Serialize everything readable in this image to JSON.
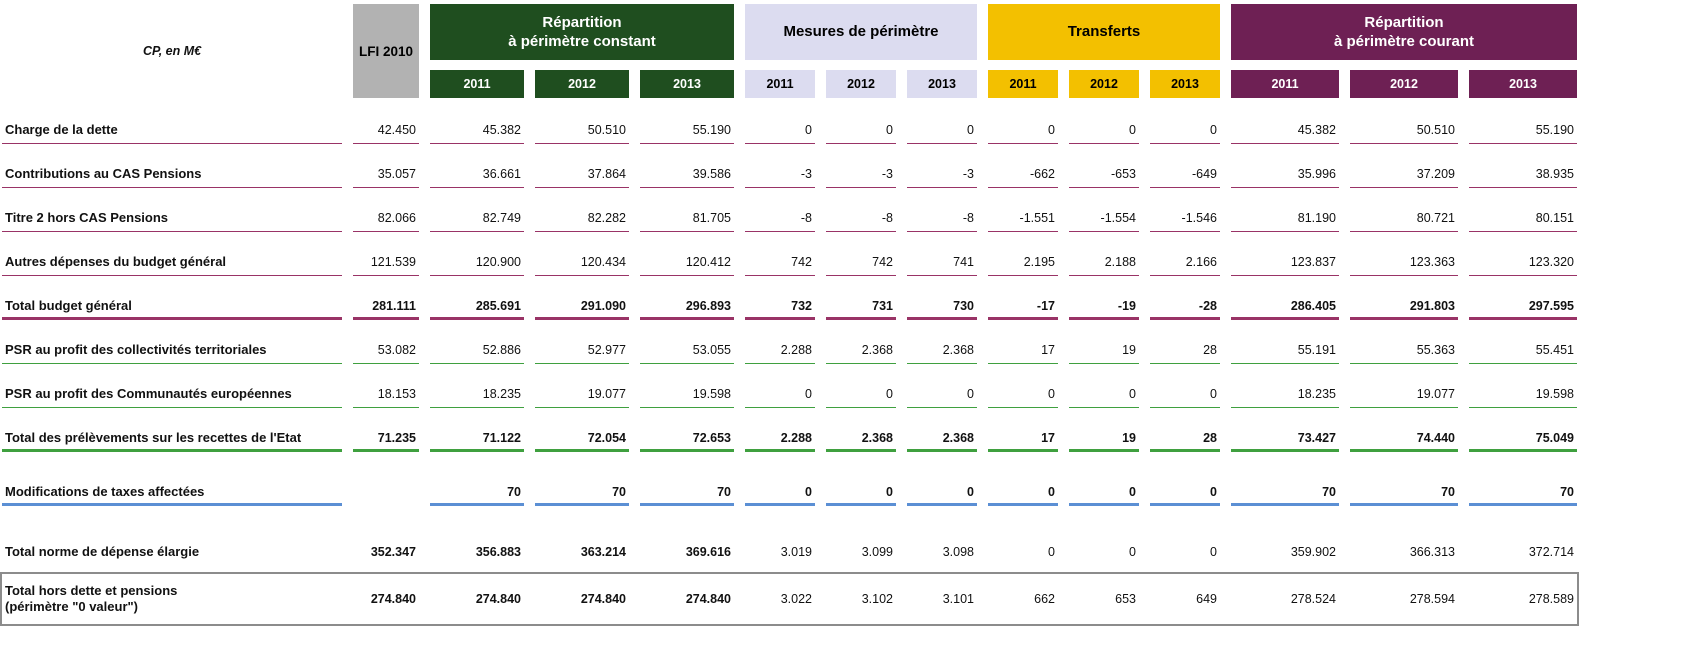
{
  "colors": {
    "lfi_bg": "#b2b2b2",
    "constant_bg": "#1f4e1f",
    "mesures_bg": "#dcdcf0",
    "transferts_bg": "#f3c000",
    "courant_bg": "#6e2054",
    "white": "#ffffff",
    "black": "#000000",
    "purple": "#993366",
    "green": "#3fa03f",
    "blue": "#5b8fd4",
    "box_border": "#8c8c8c"
  },
  "chart_data": {
    "type": "table",
    "unit_label": "CP, en M€",
    "lfi_header": "LFI 2010",
    "column_groups": [
      {
        "label": "Répartition\nà périmètre constant",
        "years": [
          "2011",
          "2012",
          "2013"
        ]
      },
      {
        "label": "Mesures de périmètre",
        "years": [
          "2011",
          "2012",
          "2013"
        ]
      },
      {
        "label": "Transferts",
        "years": [
          "2011",
          "2012",
          "2013"
        ]
      },
      {
        "label": "Répartition\nà périmètre courant",
        "years": [
          "2011",
          "2012",
          "2013"
        ]
      }
    ],
    "rows": [
      {
        "label": "Charge de la dette",
        "values": [
          "42.450",
          "45.382",
          "50.510",
          "55.190",
          "0",
          "0",
          "0",
          "0",
          "0",
          "0",
          "45.382",
          "50.510",
          "55.190"
        ],
        "bold": false,
        "rule": "purple",
        "rule_weight": "thin"
      },
      {
        "label": "Contributions au CAS Pensions",
        "values": [
          "35.057",
          "36.661",
          "37.864",
          "39.586",
          "-3",
          "-3",
          "-3",
          "-662",
          "-653",
          "-649",
          "35.996",
          "37.209",
          "38.935"
        ],
        "bold": false,
        "rule": "purple",
        "rule_weight": "thin"
      },
      {
        "label": "Titre 2 hors CAS Pensions",
        "values": [
          "82.066",
          "82.749",
          "82.282",
          "81.705",
          "-8",
          "-8",
          "-8",
          "-1.551",
          "-1.554",
          "-1.546",
          "81.190",
          "80.721",
          "80.151"
        ],
        "bold": false,
        "rule": "purple",
        "rule_weight": "thin"
      },
      {
        "label": "Autres dépenses du budget général",
        "values": [
          "121.539",
          "120.900",
          "120.434",
          "120.412",
          "742",
          "742",
          "741",
          "2.195",
          "2.188",
          "2.166",
          "123.837",
          "123.363",
          "123.320"
        ],
        "bold": false,
        "rule": "purple",
        "rule_weight": "thin"
      },
      {
        "label": "Total budget général",
        "values": [
          "281.111",
          "285.691",
          "291.090",
          "296.893",
          "732",
          "731",
          "730",
          "-17",
          "-19",
          "-28",
          "286.405",
          "291.803",
          "297.595"
        ],
        "bold": true,
        "rule": "purple",
        "rule_weight": "thick"
      },
      {
        "label": "PSR au profit des collectivités territoriales",
        "values": [
          "53.082",
          "52.886",
          "52.977",
          "53.055",
          "2.288",
          "2.368",
          "2.368",
          "17",
          "19",
          "28",
          "55.191",
          "55.363",
          "55.451"
        ],
        "bold": false,
        "rule": "green",
        "rule_weight": "thin"
      },
      {
        "label": "PSR au profit des Communautés européennes",
        "values": [
          "18.153",
          "18.235",
          "19.077",
          "19.598",
          "0",
          "0",
          "0",
          "0",
          "0",
          "0",
          "18.235",
          "19.077",
          "19.598"
        ],
        "bold": false,
        "rule": "green",
        "rule_weight": "thin"
      },
      {
        "label": "Total des prélèvements sur les recettes de l'Etat",
        "values": [
          "71.235",
          "71.122",
          "72.054",
          "72.653",
          "2.288",
          "2.368",
          "2.368",
          "17",
          "19",
          "28",
          "73.427",
          "74.440",
          "75.049"
        ],
        "bold": true,
        "rule": "green",
        "rule_weight": "thick"
      },
      {
        "label": "Modifications de taxes affectées",
        "values": [
          "",
          "70",
          "70",
          "70",
          "0",
          "0",
          "0",
          "0",
          "0",
          "0",
          "70",
          "70",
          "70"
        ],
        "bold": true,
        "rule": "blue",
        "rule_weight": "thick",
        "spacing_before": "md"
      },
      {
        "label": "Total norme de dépense élargie",
        "values": [
          "352.347",
          "356.883",
          "363.214",
          "369.616",
          "3.019",
          "3.099",
          "3.098",
          "0",
          "0",
          "0",
          "359.902",
          "366.313",
          "372.714"
        ],
        "bold": [
          true,
          true,
          true,
          true,
          false,
          false,
          false,
          false,
          false,
          false,
          false,
          false,
          false
        ],
        "rule": null,
        "spacing_before": "lg"
      },
      {
        "label": "Total hors dette et pensions\n(périmètre \"0 valeur\")",
        "values": [
          "274.840",
          "274.840",
          "274.840",
          "274.840",
          "3.022",
          "3.102",
          "3.101",
          "662",
          "653",
          "649",
          "278.524",
          "278.594",
          "278.589"
        ],
        "bold": [
          true,
          true,
          true,
          true,
          false,
          false,
          false,
          false,
          false,
          false,
          false,
          false,
          false
        ],
        "rule": null,
        "boxed": true
      }
    ]
  }
}
